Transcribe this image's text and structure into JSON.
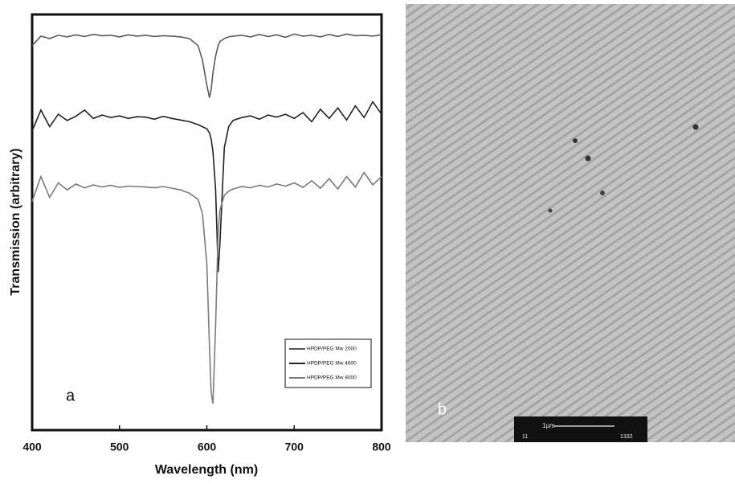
{
  "chart_data": {
    "type": "line",
    "xlabel": "Wavelength (nm)",
    "ylabel": "Transmission (arbitrary)",
    "annotation": "a",
    "xlim": [
      400,
      800
    ],
    "xticks": [
      400,
      500,
      600,
      700,
      800
    ],
    "ylim": [
      0,
      100
    ],
    "x": [
      400,
      410,
      420,
      430,
      440,
      450,
      460,
      470,
      480,
      490,
      500,
      510,
      520,
      530,
      540,
      550,
      560,
      570,
      580,
      590,
      595,
      600,
      603,
      605,
      607,
      610,
      613,
      615,
      620,
      625,
      630,
      640,
      650,
      660,
      670,
      680,
      690,
      700,
      710,
      720,
      730,
      740,
      750,
      760,
      770,
      780,
      790,
      800
    ],
    "series": [
      {
        "name": "HPDP/PEG Mw 2000",
        "color": "#5a5a5a",
        "values": [
          92.5,
          94.8,
          94.2,
          95.0,
          94.6,
          95.1,
          94.7,
          95.2,
          94.9,
          95.0,
          94.6,
          95.1,
          94.8,
          95.0,
          94.7,
          94.9,
          94.8,
          94.6,
          94.2,
          92.5,
          89,
          83,
          80,
          82,
          86,
          90,
          92.5,
          93.5,
          94.2,
          94.6,
          94.8,
          95.0,
          94.6,
          95.2,
          94.7,
          95.1,
          94.5,
          95.3,
          94.8,
          95.0,
          94.6,
          95.2,
          94.7,
          95.3,
          94.9,
          95.0,
          94.8,
          95.1
        ]
      },
      {
        "name": "HPDP/PEG Mw 4600",
        "color": "#222222",
        "values": [
          72,
          77,
          73,
          76,
          74.5,
          75.5,
          77,
          75,
          75.8,
          75.2,
          75.6,
          75.0,
          75.4,
          75.3,
          74.8,
          75.5,
          75.0,
          74.6,
          74.2,
          73.5,
          73,
          72.5,
          71.5,
          70,
          67,
          58,
          38,
          45,
          68,
          73,
          74.5,
          75.2,
          75.6,
          74.8,
          75.8,
          75.3,
          76.0,
          75.0,
          76.4,
          74.2,
          77.2,
          75.0,
          77.5,
          74.6,
          78,
          75.2,
          79,
          76
        ]
      },
      {
        "name": "HPDP/PEG Mw 8000",
        "color": "#7a7a7a",
        "values": [
          55,
          61,
          56,
          59.5,
          57.8,
          59.2,
          58.3,
          59.0,
          58.5,
          58.9,
          58.4,
          58.7,
          58.6,
          58.5,
          58.3,
          58.6,
          58.2,
          57.8,
          57.0,
          55.5,
          52,
          40,
          20,
          9,
          6.4,
          25,
          48,
          53,
          56.5,
          57.5,
          58.0,
          58.6,
          58.3,
          58.9,
          58.5,
          59.2,
          58.7,
          59.5,
          58.4,
          60,
          58.2,
          60.5,
          58.0,
          61,
          58.5,
          62,
          59,
          61
        ]
      }
    ]
  },
  "image_panel": {
    "label": "b",
    "scale_bar": {
      "length": "1μm",
      "left": "11",
      "right": "1332"
    }
  }
}
